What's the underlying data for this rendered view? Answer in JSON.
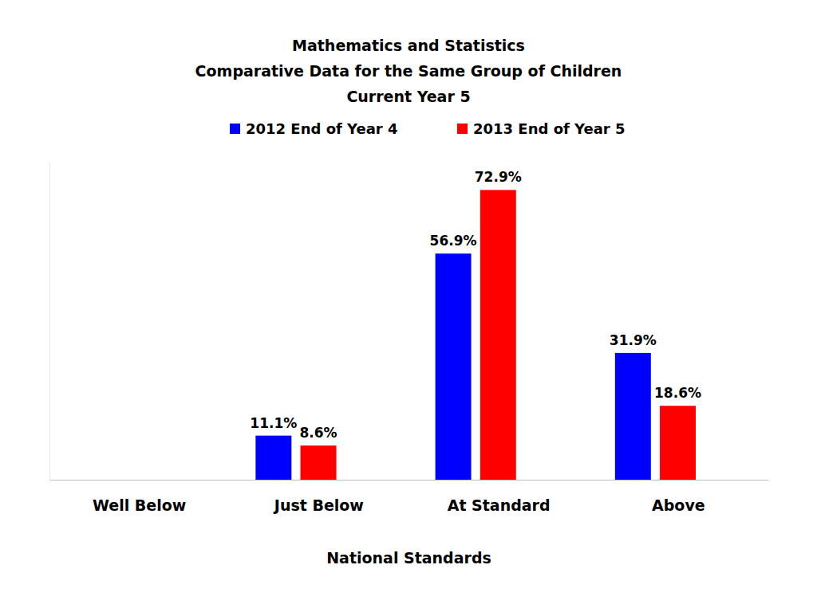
{
  "chart_data": {
    "type": "bar",
    "title": "Mathematics and Statistics",
    "subtitle": [
      "Comparative Data for the Same Group of Children",
      "Current Year 5"
    ],
    "x_label": "National Standards",
    "categories": [
      "Well Below",
      "Just Below",
      "At Standard",
      "Above"
    ],
    "series": [
      {
        "name": "2012 End of Year 4",
        "color": "#0000ff",
        "values": [
          null,
          11.1,
          56.9,
          31.9
        ],
        "value_labels": [
          null,
          "11.1%",
          "56.9%",
          "31.9%"
        ]
      },
      {
        "name": "2013 End of Year 5",
        "color": "#ff0000",
        "values": [
          null,
          8.6,
          72.9,
          18.6
        ],
        "value_labels": [
          null,
          "8.6%",
          "72.9%",
          "18.6%"
        ]
      }
    ],
    "ylim": [
      0,
      80
    ],
    "grid": false,
    "legend": "top",
    "data_labels": true,
    "tick_labels": "x"
  }
}
